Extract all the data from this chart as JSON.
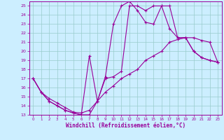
{
  "xlabel": "Windchill (Refroidissement éolien,°C)",
  "line_color": "#990099",
  "bg_color": "#cceeff",
  "grid_color": "#99cccc",
  "xlim": [
    -0.5,
    23.5
  ],
  "ylim": [
    13,
    25.5
  ],
  "xticks": [
    0,
    1,
    2,
    3,
    4,
    5,
    6,
    7,
    8,
    9,
    10,
    11,
    12,
    13,
    14,
    15,
    16,
    17,
    18,
    19,
    20,
    21,
    22,
    23
  ],
  "yticks": [
    13,
    14,
    15,
    16,
    17,
    18,
    19,
    20,
    21,
    22,
    23,
    24,
    25
  ],
  "line1_x": [
    0,
    1,
    2,
    3,
    4,
    5,
    6,
    7,
    8,
    9,
    10,
    11,
    12,
    13,
    14,
    15,
    16,
    17,
    18,
    19,
    20,
    21,
    22,
    23
  ],
  "line1_y": [
    17,
    15.5,
    14.5,
    14,
    13.5,
    13.2,
    13,
    13,
    14.5,
    17,
    17.2,
    17.8,
    25,
    25,
    24.5,
    25,
    25,
    22.5,
    21.5,
    21.5,
    20,
    19.3,
    19,
    18.8
  ],
  "line2_x": [
    0,
    1,
    2,
    3,
    4,
    5,
    6,
    7,
    8,
    9,
    10,
    11,
    12,
    13,
    14,
    15,
    16,
    17,
    18,
    19,
    20,
    21,
    22,
    23
  ],
  "line2_y": [
    17,
    15.5,
    14.5,
    14,
    13.5,
    13.2,
    13,
    19.5,
    14.5,
    17.2,
    23,
    25,
    25.5,
    24.5,
    23.2,
    23,
    25,
    25,
    21.5,
    21.5,
    20,
    19.3,
    19,
    18.8
  ],
  "line3_x": [
    0,
    1,
    2,
    3,
    4,
    5,
    6,
    7,
    8,
    9,
    10,
    11,
    12,
    13,
    14,
    15,
    16,
    17,
    18,
    19,
    20,
    21,
    22,
    23
  ],
  "line3_y": [
    17,
    15.5,
    14.8,
    14.3,
    13.8,
    13.3,
    13.2,
    13.5,
    14.5,
    15.5,
    16.2,
    17,
    17.5,
    18,
    19,
    19.5,
    20,
    21,
    21.3,
    21.5,
    21.5,
    21.2,
    21,
    18.8
  ]
}
